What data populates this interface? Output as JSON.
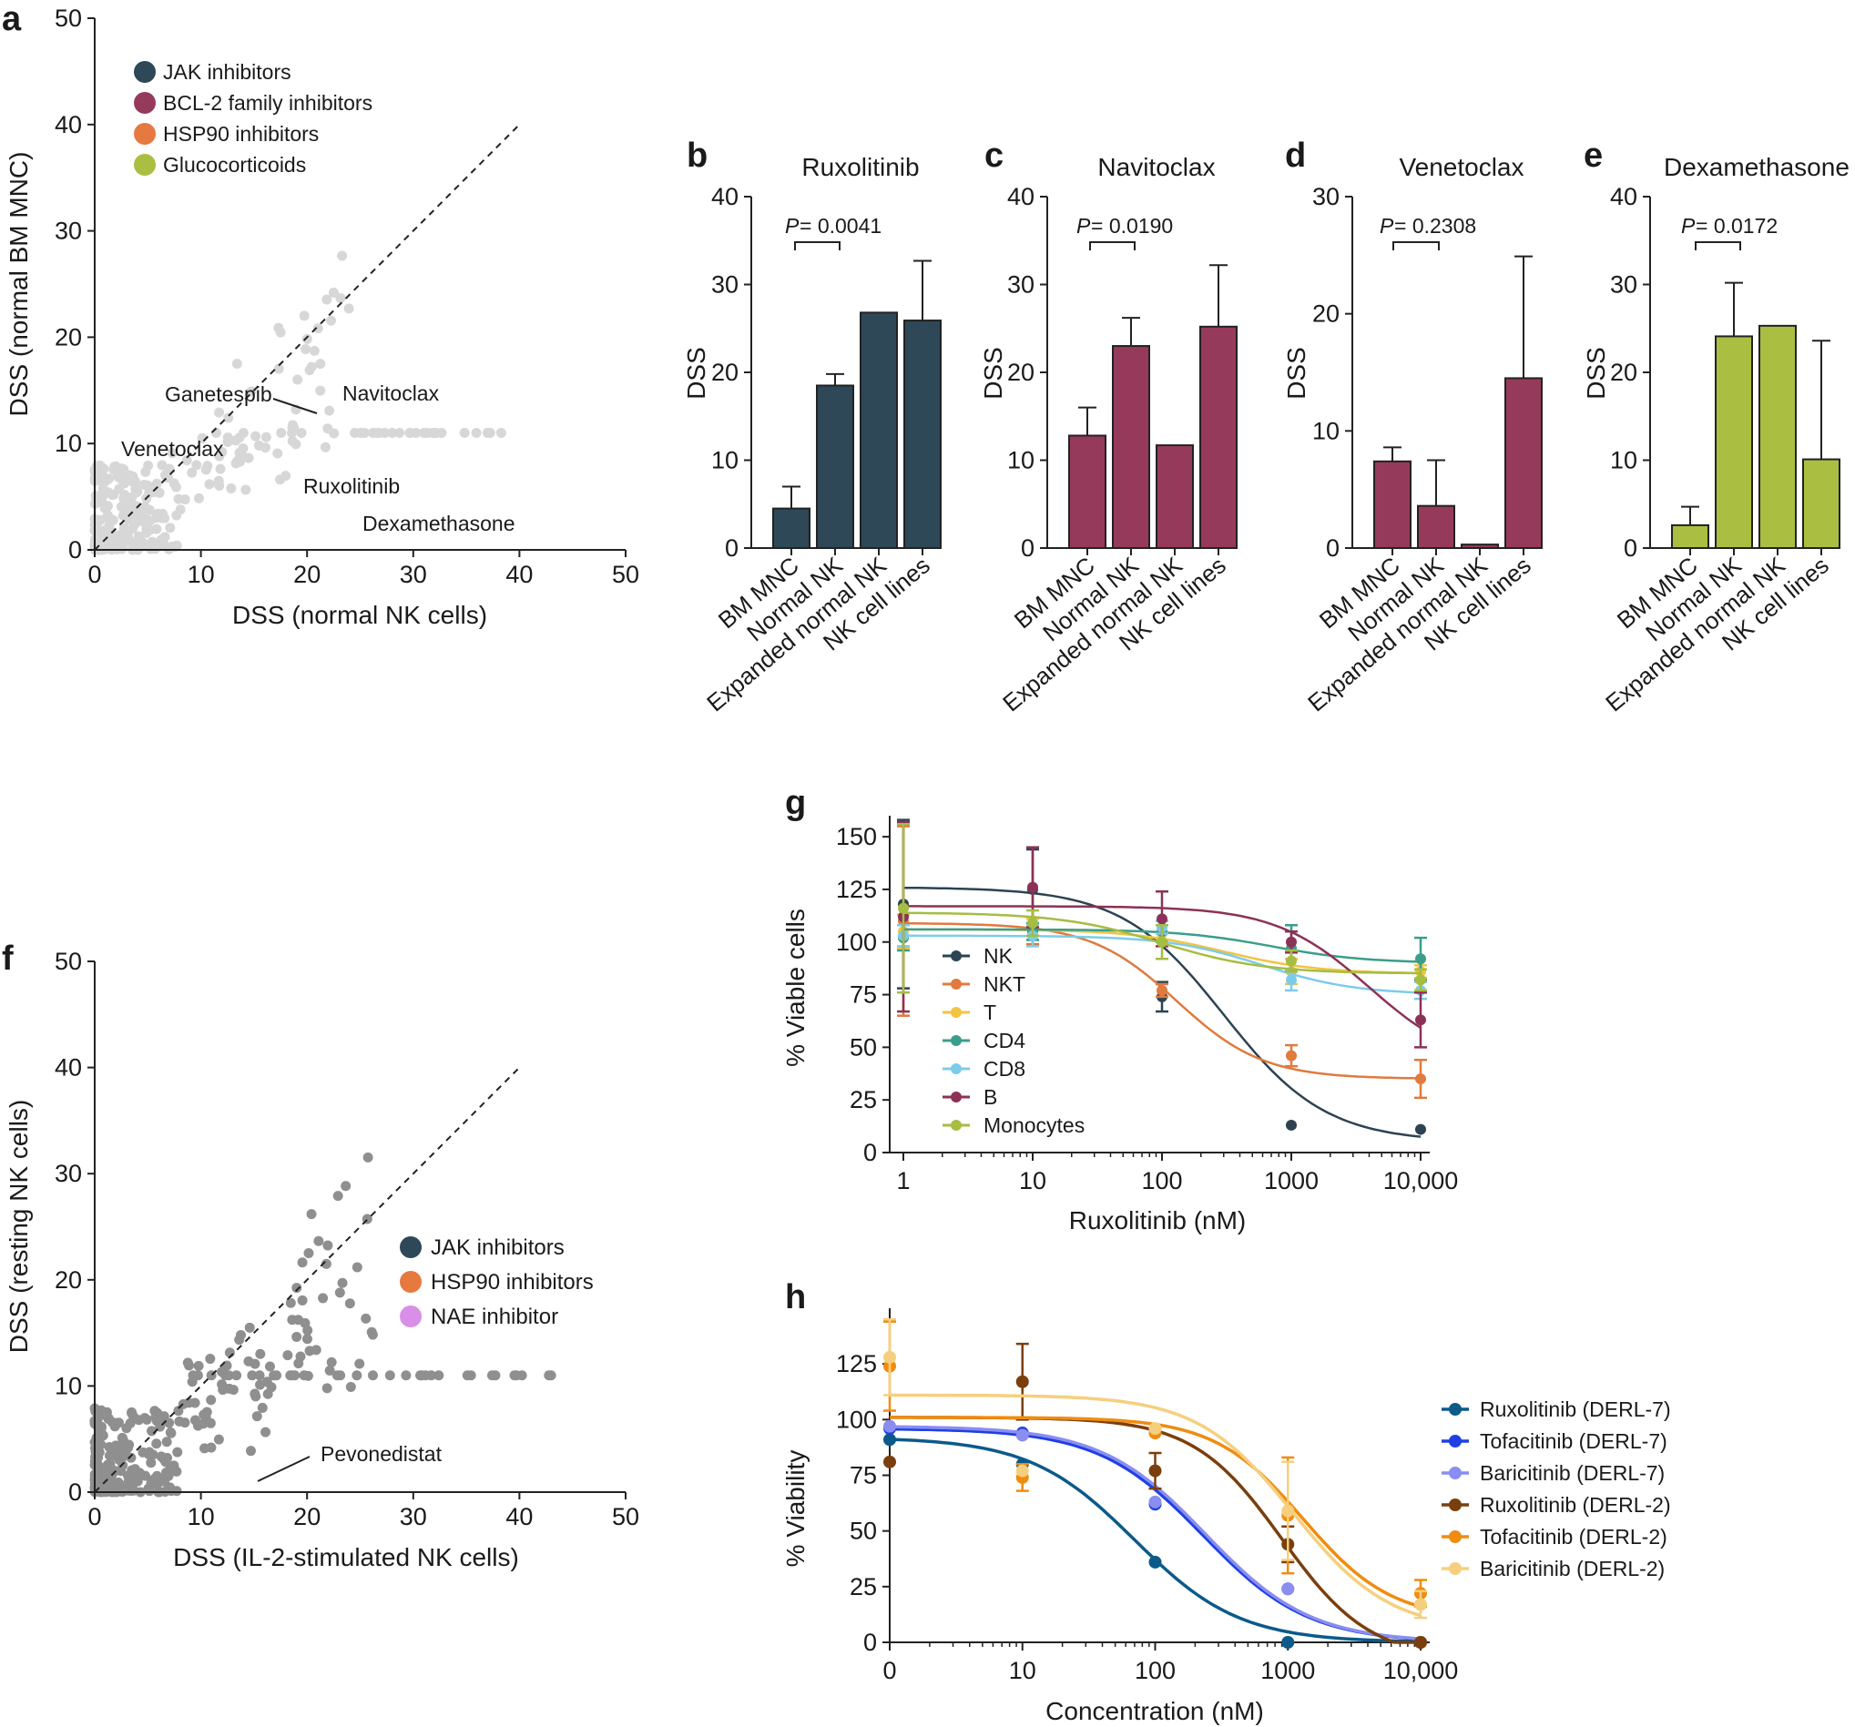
{
  "colors": {
    "jak": "#2e4858",
    "bcl2": "#963a5c",
    "hsp90": "#e6793f",
    "glucocorticoid": "#aabe42",
    "nae": "#d98ee8",
    "bg_light": "#d7d7d7",
    "bg_dark": "#8f8f8f",
    "NK": "#2c4352",
    "NKT": "#e07a3e",
    "T": "#f1c443",
    "CD4": "#3a9e8a",
    "CD8": "#7dcbea",
    "B": "#8c3257",
    "Monocytes": "#a6bd42",
    "rux7": "#0b5a8a",
    "tofa7": "#1f3fe6",
    "bari7": "#8a8ef0",
    "rux2": "#7a3f0d",
    "tofa2": "#f08c10",
    "bari2": "#f6cf7e"
  },
  "panels": {
    "a": {
      "letter": "a"
    },
    "b": {
      "letter": "b"
    },
    "c": {
      "letter": "c"
    },
    "d": {
      "letter": "d"
    },
    "e": {
      "letter": "e"
    },
    "f": {
      "letter": "f"
    },
    "g": {
      "letter": "g"
    },
    "h": {
      "letter": "h"
    }
  },
  "chart_data": [
    {
      "id": "a",
      "type": "scatter",
      "xlabel": "DSS (normal NK cells)",
      "ylabel": "DSS (normal BM MNC)",
      "xlim": [
        0,
        50
      ],
      "ylim": [
        0,
        50
      ],
      "xticks": [
        "0",
        "10",
        "20",
        "30",
        "40",
        "50"
      ],
      "yticks": [
        "0",
        "10",
        "20",
        "30",
        "40",
        "50"
      ],
      "identity_line": true,
      "legend": [
        {
          "label": "JAK inhibitors",
          "color_key": "jak"
        },
        {
          "label": "BCL-2 family inhibitors",
          "color_key": "bcl2"
        },
        {
          "label": "HSP90 inhibitors",
          "color_key": "hsp90"
        },
        {
          "label": "Glucocorticoids",
          "color_key": "glucocorticoid"
        }
      ],
      "highlighted": [
        {
          "x": 10.9,
          "y": 1.2,
          "group": "jak"
        },
        {
          "x": 13.1,
          "y": 0.3,
          "group": "jak"
        },
        {
          "x": 18.6,
          "y": 4.6,
          "group": "jak"
        },
        {
          "x": 3.4,
          "y": 7.6,
          "group": "bcl2"
        },
        {
          "x": 22.9,
          "y": 12.8,
          "group": "bcl2"
        },
        {
          "x": 18.3,
          "y": 8.2,
          "group": "hsp90"
        },
        {
          "x": 19.2,
          "y": 9.8,
          "group": "hsp90"
        },
        {
          "x": 21.2,
          "y": 10.6,
          "group": "hsp90"
        },
        {
          "x": 21.9,
          "y": 12.1,
          "group": "hsp90"
        },
        {
          "x": 23.6,
          "y": 12.1,
          "group": "hsp90"
        },
        {
          "x": 12.6,
          "y": 0.5,
          "group": "glucocorticoid"
        },
        {
          "x": 19.3,
          "y": 2.0,
          "group": "glucocorticoid"
        },
        {
          "x": 24.1,
          "y": 2.7,
          "group": "glucocorticoid"
        }
      ],
      "annotations": [
        {
          "label": "Ganetespib",
          "x": 11.3,
          "y": 14.6
        },
        {
          "label": "Navitoclax",
          "x": 23.5,
          "y": 14.6
        },
        {
          "label": "Venetoclax",
          "x": 2.8,
          "y": 9.2
        },
        {
          "label": "Ruxolitinib",
          "x": 19.6,
          "y": 6.2
        },
        {
          "label": "Dexamethasone",
          "x": 25.5,
          "y": 2.3
        }
      ]
    },
    {
      "id": "b",
      "type": "bar",
      "title": "Ruxolitinib",
      "ylabel": "DSS",
      "ylim": [
        0,
        40
      ],
      "yticks": [
        "0",
        "10",
        "20",
        "30",
        "40"
      ],
      "categories": [
        "BM MNC",
        "Normal NK",
        "Expanded normal NK",
        "NK cell lines"
      ],
      "values": [
        4.5,
        18.5,
        26.8,
        25.9
      ],
      "errors": [
        2.5,
        1.3,
        0,
        6.8
      ],
      "color_key": "jak",
      "pvalue": "= 0.0041"
    },
    {
      "id": "c",
      "type": "bar",
      "title": "Navitoclax",
      "ylabel": "DSS",
      "ylim": [
        0,
        40
      ],
      "yticks": [
        "0",
        "10",
        "20",
        "30",
        "40"
      ],
      "categories": [
        "BM MNC",
        "Normal NK",
        "Expanded normal NK",
        "NK cell lines"
      ],
      "values": [
        12.8,
        23.0,
        11.7,
        25.2
      ],
      "errors": [
        3.2,
        3.2,
        0,
        7.0
      ],
      "color_key": "bcl2",
      "pvalue": "= 0.0190"
    },
    {
      "id": "d",
      "type": "bar",
      "title": "Venetoclax",
      "ylabel": "DSS",
      "ylim": [
        0,
        30
      ],
      "yticks": [
        "0",
        "10",
        "20",
        "30"
      ],
      "categories": [
        "BM MNC",
        "Normal NK",
        "Expanded normal NK",
        "NK cell lines"
      ],
      "values": [
        7.4,
        3.6,
        0.3,
        14.5
      ],
      "errors": [
        1.2,
        3.9,
        0,
        10.4
      ],
      "color_key": "bcl2",
      "pvalue": "= 0.2308"
    },
    {
      "id": "e",
      "type": "bar",
      "title": "Dexamethasone",
      "ylabel": "DSS",
      "ylim": [
        0,
        40
      ],
      "yticks": [
        "0",
        "10",
        "20",
        "30",
        "40"
      ],
      "categories": [
        "BM MNC",
        "Normal NK",
        "Expanded normal NK",
        "NK cell lines"
      ],
      "values": [
        2.6,
        24.1,
        25.3,
        10.1
      ],
      "errors": [
        2.1,
        6.1,
        0,
        13.5
      ],
      "color_key": "glucocorticoid",
      "pvalue": "= 0.0172"
    },
    {
      "id": "f",
      "type": "scatter",
      "xlabel": "DSS (IL-2-stimulated NK cells)",
      "ylabel": "DSS (resting NK cells)",
      "xlim": [
        0,
        50
      ],
      "ylim": [
        0,
        50
      ],
      "xticks": [
        "0",
        "10",
        "20",
        "30",
        "40",
        "50"
      ],
      "yticks": [
        "0",
        "10",
        "20",
        "30",
        "40",
        "50"
      ],
      "identity_line": true,
      "legend": [
        {
          "label": "JAK inhibitors",
          "color_key": "jak"
        },
        {
          "label": "HSP90 inhibitors",
          "color_key": "hsp90"
        },
        {
          "label": "NAE inhibitor",
          "color_key": "nae"
        }
      ],
      "highlighted": [
        {
          "x": 12.9,
          "y": 0.4,
          "group": "jak"
        },
        {
          "x": 14.8,
          "y": 2.2,
          "group": "jak"
        },
        {
          "x": 15.4,
          "y": 0.3,
          "group": "jak"
        },
        {
          "x": 15.6,
          "y": 4.0,
          "group": "jak"
        },
        {
          "x": 18.4,
          "y": 0.7,
          "group": "jak"
        },
        {
          "x": 15.4,
          "y": 7.4,
          "group": "hsp90"
        },
        {
          "x": 17.8,
          "y": 8.5,
          "group": "hsp90"
        },
        {
          "x": 17.9,
          "y": 12.8,
          "group": "hsp90"
        },
        {
          "x": 20.9,
          "y": 10.7,
          "group": "hsp90"
        },
        {
          "x": 22.4,
          "y": 14.1,
          "group": "hsp90"
        },
        {
          "x": 23.4,
          "y": 14.5,
          "group": "hsp90"
        },
        {
          "x": 25.9,
          "y": 11.7,
          "group": "hsp90"
        },
        {
          "x": 13.9,
          "y": 0.2,
          "group": "nae"
        }
      ],
      "annotations": [
        {
          "label": "Pevonedistat",
          "x": 21.2,
          "y": 3.2
        }
      ]
    },
    {
      "id": "g",
      "type": "line",
      "xscale": "log",
      "xlabel": "Ruxolitinib (nM)",
      "ylabel": "% Viable cells",
      "xticks": [
        "1",
        "10",
        "100",
        "1000",
        "10,000"
      ],
      "xtick_values": [
        1,
        10,
        100,
        1000,
        10000
      ],
      "yticks": [
        "0",
        "25",
        "50",
        "75",
        "100",
        "125",
        "150"
      ],
      "ylim": [
        0,
        160
      ],
      "x": [
        1,
        10,
        100,
        1000,
        10000
      ],
      "series": [
        {
          "name": "NK",
          "color_key": "NK",
          "values": [
            118,
            125,
            74,
            13,
            11
          ],
          "errors": [
            40,
            19,
            7,
            0,
            0
          ],
          "fit": {
            "top": 126,
            "bottom": 5,
            "ec50": 300,
            "hill": 1.1
          }
        },
        {
          "name": "NKT",
          "color_key": "NKT",
          "values": [
            110,
            103,
            77,
            46,
            35
          ],
          "errors": [
            45,
            4,
            3,
            5,
            9
          ],
          "fit": {
            "top": 109,
            "bottom": 35,
            "ec50": 130,
            "hill": 1.3
          }
        },
        {
          "name": "T",
          "color_key": "T",
          "values": [
            105,
            106,
            104,
            86,
            86
          ],
          "errors": [
            8,
            5,
            4,
            6,
            3
          ],
          "fit": {
            "top": 106,
            "bottom": 85,
            "ec50": 300,
            "hill": 1.2
          }
        },
        {
          "name": "CD4",
          "color_key": "CD4",
          "values": [
            102,
            105,
            105,
            97,
            92
          ],
          "errors": [
            6,
            4,
            5,
            11,
            10
          ],
          "fit": {
            "top": 106,
            "bottom": 90,
            "ec50": 700,
            "hill": 1.2
          }
        },
        {
          "name": "CD8",
          "color_key": "CD8",
          "values": [
            103,
            103,
            107,
            82,
            77
          ],
          "errors": [
            5,
            5,
            3,
            5,
            4
          ],
          "fit": {
            "top": 103,
            "bottom": 75,
            "ec50": 600,
            "hill": 1.2
          }
        },
        {
          "name": "B",
          "color_key": "B",
          "values": [
            112,
            126,
            111,
            100,
            63
          ],
          "errors": [
            45,
            19,
            13,
            5,
            13
          ],
          "fit": {
            "top": 117,
            "bottom": 40,
            "ec50": 4000,
            "hill": 1.2
          }
        },
        {
          "name": "Monocytes",
          "color_key": "Monocytes",
          "values": [
            116,
            109,
            100,
            91,
            82
          ],
          "errors": [
            40,
            6,
            8,
            5,
            5
          ],
          "fit": {
            "top": 114,
            "bottom": 85,
            "ec50": 100,
            "hill": 1.1
          }
        }
      ]
    },
    {
      "id": "h",
      "type": "line",
      "xscale": "log",
      "xlabel": "Concentration (nM)",
      "ylabel": "% Viability",
      "xticks": [
        "0",
        "10",
        "100",
        "1000",
        "10,000"
      ],
      "xtick_values": [
        1,
        10,
        100,
        1000,
        10000
      ],
      "yticks": [
        "0",
        "25",
        "50",
        "75",
        "100",
        "125"
      ],
      "ylim": [
        0,
        150
      ],
      "x": [
        1,
        10,
        100,
        1000,
        10000
      ],
      "series": [
        {
          "name": "Ruxolitinib (DERL-7)",
          "color_key": "rux7",
          "values": [
            91,
            80,
            36,
            0,
            0
          ],
          "errors": [
            0,
            0,
            0,
            0,
            0
          ],
          "fit": {
            "top": 92,
            "bottom": 0,
            "ec50": 70,
            "hill": 1.1
          }
        },
        {
          "name": "Tofacitinib (DERL-7)",
          "color_key": "tofa7",
          "values": [
            96,
            94,
            62,
            24,
            0
          ],
          "errors": [
            0,
            0,
            0,
            0,
            0
          ],
          "fit": {
            "top": 96,
            "bottom": 0,
            "ec50": 230,
            "hill": 1.1
          }
        },
        {
          "name": "Baricitinib (DERL-7)",
          "color_key": "bari7",
          "values": [
            97,
            93,
            63,
            24,
            0
          ],
          "errors": [
            0,
            0,
            0,
            0,
            0
          ],
          "fit": {
            "top": 97,
            "bottom": 0,
            "ec50": 240,
            "hill": 1.1
          }
        },
        {
          "name": "Ruxolitinib (DERL-2)",
          "color_key": "rux2",
          "values": [
            81,
            117,
            77,
            44,
            0
          ],
          "errors": [
            0,
            17,
            8,
            8,
            0
          ],
          "fit": {
            "top": 101,
            "bottom": -8,
            "ec50": 900,
            "hill": 1.3
          }
        },
        {
          "name": "Tofacitinib (DERL-2)",
          "color_key": "tofa2",
          "values": [
            124,
            74,
            94,
            57,
            22
          ],
          "errors": [
            20,
            6,
            0,
            26,
            6
          ],
          "fit": {
            "top": 101,
            "bottom": 10,
            "ec50": 1300,
            "hill": 1.3
          }
        },
        {
          "name": "Baricitinib (DERL-2)",
          "color_key": "bari2",
          "values": [
            128,
            77,
            96,
            59,
            17
          ],
          "errors": [
            17,
            0,
            0,
            22,
            6
          ],
          "fit": {
            "top": 111,
            "bottom": 5,
            "ec50": 1100,
            "hill": 1.2
          }
        }
      ]
    }
  ]
}
